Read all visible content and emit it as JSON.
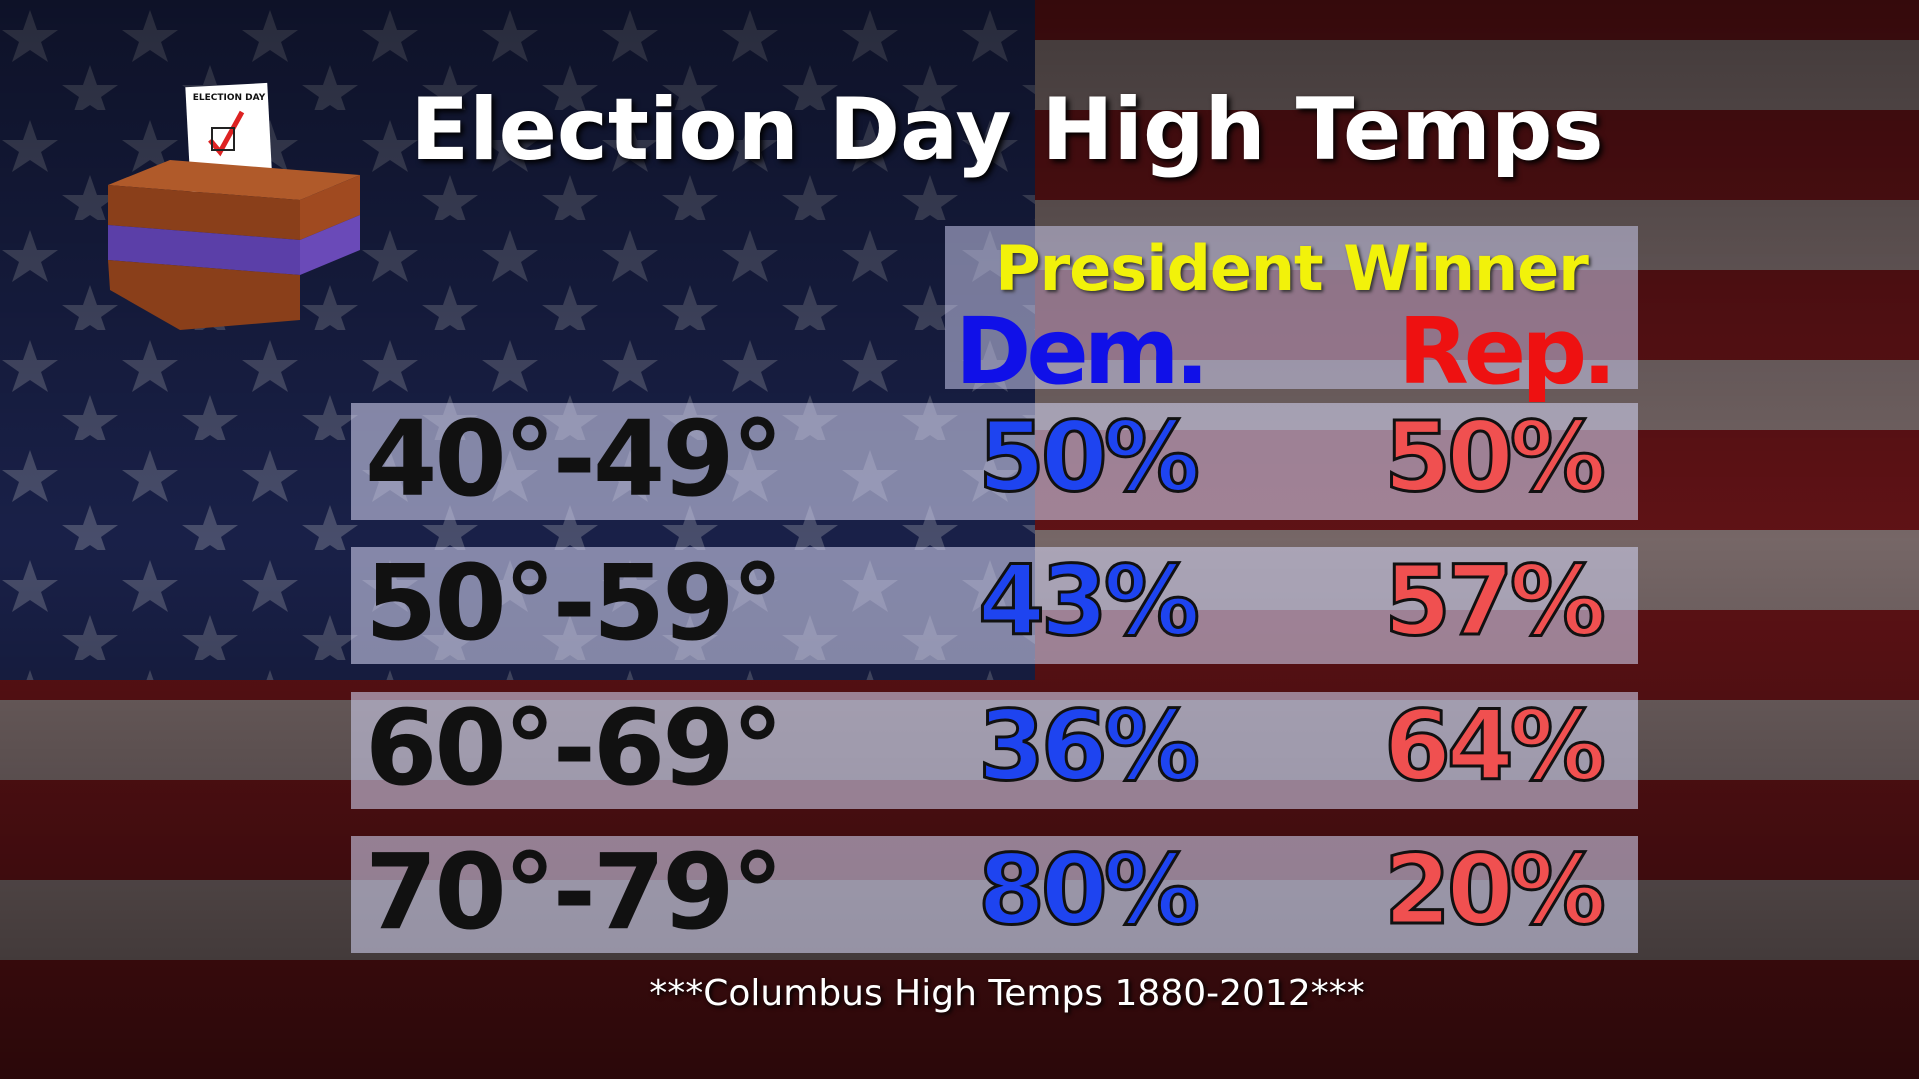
{
  "header": {
    "title": "Election Day High Temps"
  },
  "icon": {
    "label": "ELECTION DAY"
  },
  "table": {
    "group_header": "President Winner",
    "columns": [
      "Dem.",
      "Rep."
    ],
    "rows": [
      [
        "40°-49°",
        "50%",
        "50%"
      ],
      [
        "50°-59°",
        "43%",
        "57%"
      ],
      [
        "60°-69°",
        "36%",
        "64%"
      ],
      [
        "70°-79°",
        "80%",
        "20%"
      ]
    ]
  },
  "footnote": "***Columbus High Temps 1880-2012***"
}
